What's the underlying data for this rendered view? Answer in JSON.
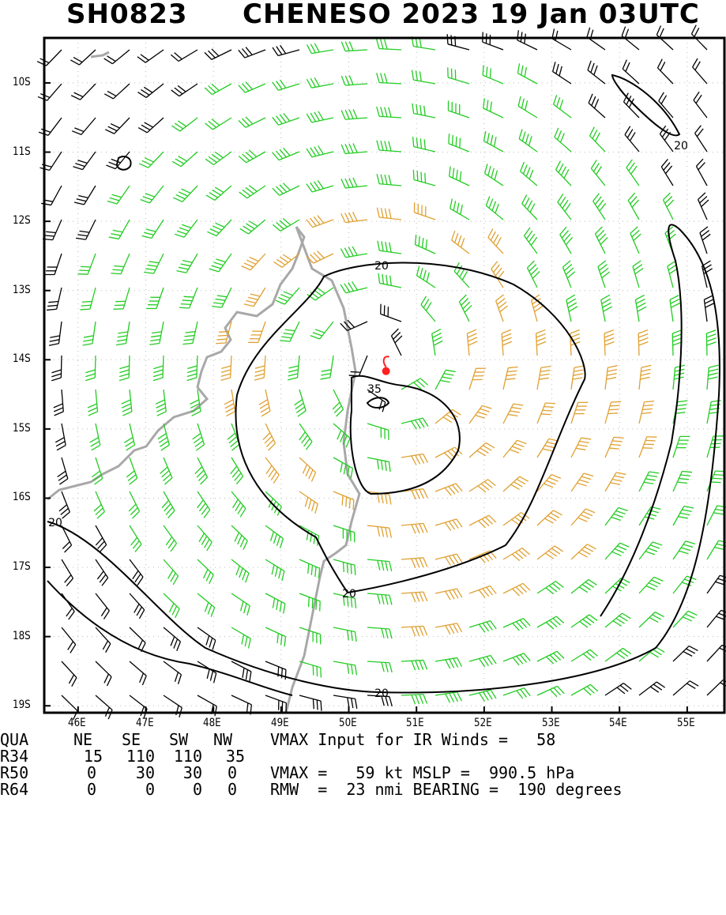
{
  "header": {
    "storm_id": "SH0823",
    "storm_title": "CHENESO 2023 19 Jan 03UTC"
  },
  "chart_data": {
    "type": "wind barb map",
    "x_ticks": [
      "46E",
      "47E",
      "48E",
      "49E",
      "50E",
      "51E",
      "52E",
      "53E",
      "54E",
      "55E"
    ],
    "y_ticks": [
      "10S",
      "11S",
      "12S",
      "13S",
      "14S",
      "15S",
      "16S",
      "17S",
      "18S",
      "19S"
    ],
    "xlim": [
      45.5,
      55.55
    ],
    "ylim": [
      -19.1,
      -9.35
    ],
    "contour_labels": [
      "20",
      "20",
      "20",
      "20",
      "35"
    ],
    "storm_center": {
      "lon": 50.55,
      "lat": -14.05
    },
    "barb_colors": {
      "below_34kt": "#000000",
      "34_to_50kt": "#22cc22",
      "50kt_plus": "#e0a030"
    },
    "coast_color": "#a8a8a8",
    "center_symbol_color": "#ff2020",
    "grid": true
  },
  "table": {
    "headers": [
      "QUA",
      "NE",
      "SE",
      "SW",
      "NW"
    ],
    "rows": [
      {
        "label": "R34",
        "values": [
          "15",
          "110",
          "110",
          "35"
        ]
      },
      {
        "label": "R50",
        "values": [
          "0",
          "30",
          "30",
          "0"
        ]
      },
      {
        "label": "R64",
        "values": [
          "0",
          "0",
          "0",
          "0"
        ]
      }
    ],
    "vmax_input": "VMAX Input for IR Winds =   58",
    "vmax_line": "VMAX =   59 kt MSLP =  990.5 hPa",
    "rmw_line": "RMW  =  23 nmi BEARING =  190 degrees"
  }
}
